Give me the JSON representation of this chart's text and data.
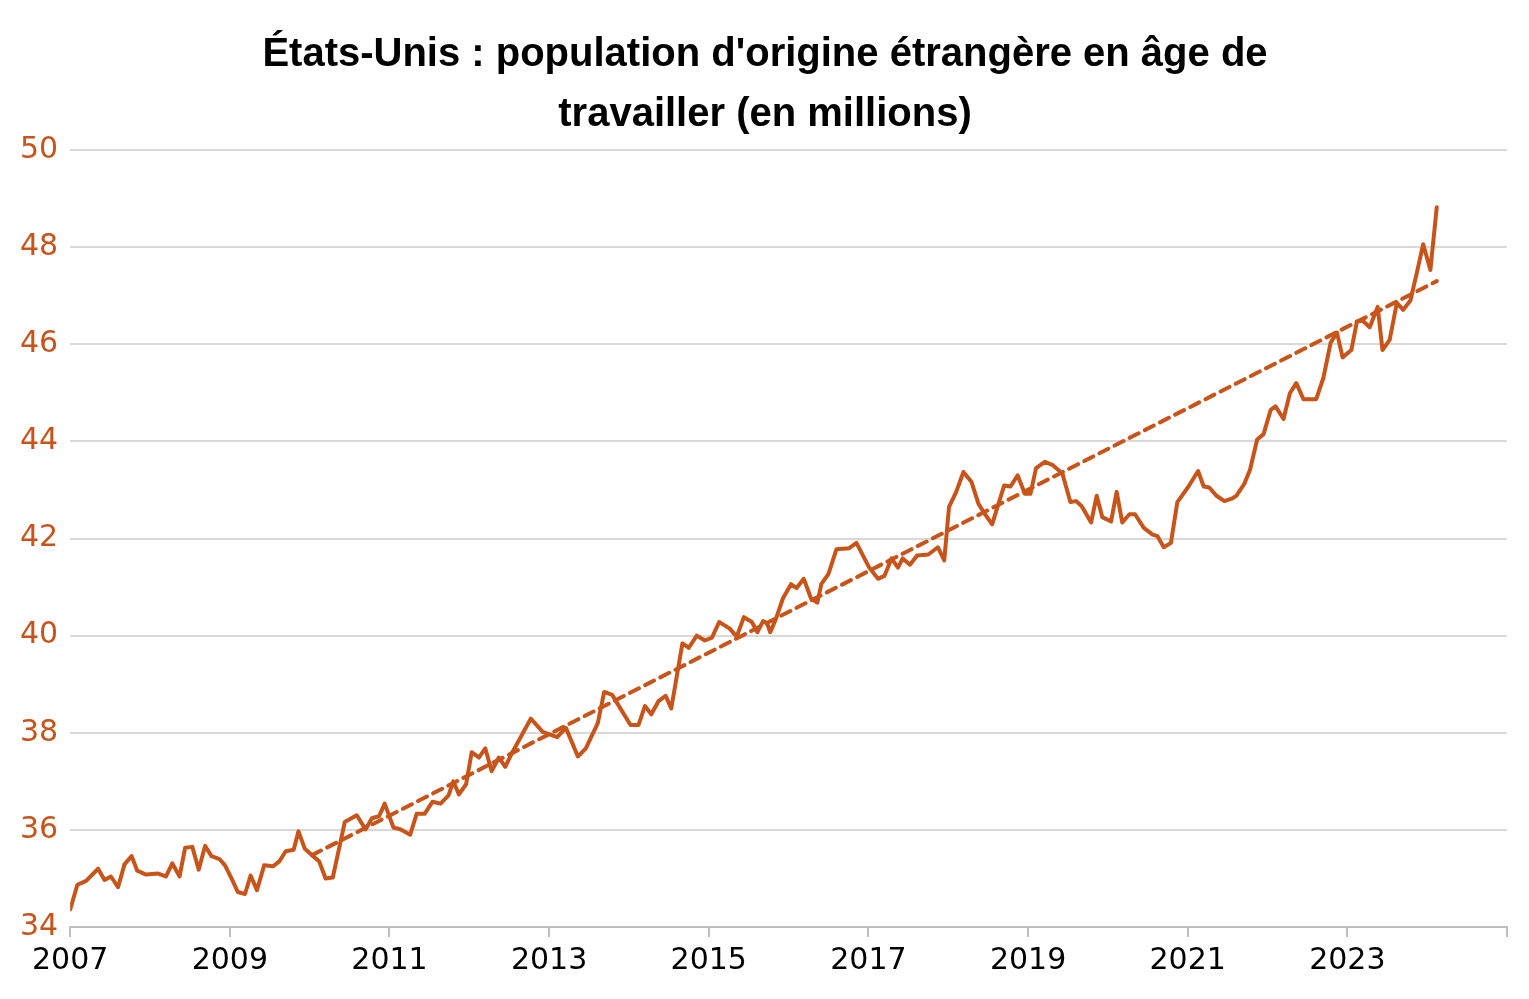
{
  "chart_data": {
    "type": "line",
    "title": "États-Unis : population d'origine étrangère en âge de travailler (en millions)",
    "xlim": [
      2007,
      2025
    ],
    "xticks": [
      2007,
      2009,
      2011,
      2013,
      2015,
      2017,
      2019,
      2021,
      2023,
      {
        "value": 2025,
        "label": null
      }
    ],
    "ylim": [
      34,
      50
    ],
    "yticks": [
      34,
      36,
      38,
      40,
      42,
      44,
      46,
      48,
      50
    ],
    "grid": "y",
    "legend": false,
    "marker": "none",
    "series": [
      {
        "color": "#c9541a",
        "line_style": "solid",
        "x": [
          2007.0,
          2007.09,
          2007.2,
          2007.35,
          2007.43,
          2007.51,
          2007.6,
          2007.68,
          2007.77,
          2007.84,
          2007.95,
          2008.1,
          2008.2,
          2008.28,
          2008.37,
          2008.44,
          2008.53,
          2008.61,
          2008.69,
          2008.77,
          2008.87,
          2008.94,
          2009.03,
          2009.1,
          2009.19,
          2009.26,
          2009.34,
          2009.43,
          2009.54,
          2009.62,
          2009.7,
          2009.8,
          2009.86,
          2009.94,
          2010.03,
          2010.12,
          2010.2,
          2010.29,
          2010.44,
          2010.59,
          2010.7,
          2010.78,
          2010.87,
          2010.94,
          2011.05,
          2011.14,
          2011.26,
          2011.34,
          2011.44,
          2011.54,
          2011.64,
          2011.74,
          2011.8,
          2011.87,
          2011.96,
          2012.03,
          2012.12,
          2012.2,
          2012.28,
          2012.37,
          2012.45,
          2012.54,
          2012.77,
          2012.92,
          2013.1,
          2013.21,
          2013.36,
          2013.46,
          2013.61,
          2013.69,
          2013.79,
          2013.86,
          2014.02,
          2014.12,
          2014.2,
          2014.28,
          2014.37,
          2014.46,
          2014.53,
          2014.67,
          2014.75,
          2014.85,
          2014.95,
          2015.04,
          2015.13,
          2015.26,
          2015.35,
          2015.44,
          2015.54,
          2015.61,
          2015.68,
          2015.73,
          2015.77,
          2015.84,
          2015.93,
          2016.03,
          2016.1,
          2016.19,
          2016.28,
          2016.36,
          2016.41,
          2016.5,
          2016.6,
          2016.76,
          2016.85,
          2017.01,
          2017.12,
          2017.2,
          2017.29,
          2017.37,
          2017.43,
          2017.52,
          2017.61,
          2017.75,
          2017.87,
          2017.95,
          2018.01,
          2018.1,
          2018.19,
          2018.29,
          2018.38,
          2018.46,
          2018.55,
          2018.7,
          2018.78,
          2018.87,
          2018.96,
          2019.03,
          2019.1,
          2019.21,
          2019.31,
          2019.43,
          2019.53,
          2019.6,
          2019.67,
          2019.79,
          2019.86,
          2019.93,
          2020.04,
          2020.11,
          2020.18,
          2020.27,
          2020.34,
          2020.45,
          2020.56,
          2020.62,
          2020.7,
          2020.79,
          2020.87,
          2021.01,
          2021.13,
          2021.2,
          2021.27,
          2021.36,
          2021.46,
          2021.55,
          2021.61,
          2021.71,
          2021.78,
          2021.87,
          2021.95,
          2022.04,
          2022.1,
          2022.2,
          2022.28,
          2022.36,
          2022.45,
          2022.61,
          2022.7,
          2022.79,
          2022.87,
          2022.94,
          2023.05,
          2023.12,
          2023.19,
          2023.28,
          2023.38,
          2023.44,
          2023.53,
          2023.62,
          2023.7,
          2023.79,
          2023.87,
          2023.95,
          2024.04,
          2024.12
        ],
        "values": [
          34.36,
          34.87,
          34.95,
          35.2,
          34.97,
          35.04,
          34.82,
          35.29,
          35.46,
          35.16,
          35.08,
          35.1,
          35.04,
          35.31,
          35.04,
          35.63,
          35.65,
          35.18,
          35.67,
          35.46,
          35.4,
          35.27,
          34.97,
          34.72,
          34.68,
          35.06,
          34.76,
          35.27,
          35.25,
          35.35,
          35.56,
          35.59,
          35.97,
          35.61,
          35.48,
          35.35,
          35.0,
          35.02,
          36.16,
          36.3,
          36.01,
          36.24,
          36.28,
          36.54,
          36.05,
          36.01,
          35.9,
          36.33,
          36.33,
          36.58,
          36.54,
          36.71,
          37.0,
          36.73,
          36.94,
          37.6,
          37.49,
          37.68,
          37.21,
          37.49,
          37.3,
          37.6,
          38.29,
          38.02,
          37.91,
          38.1,
          37.51,
          37.68,
          38.2,
          38.84,
          38.78,
          38.59,
          38.16,
          38.16,
          38.55,
          38.38,
          38.65,
          38.76,
          38.5,
          39.84,
          39.75,
          40.0,
          39.9,
          39.96,
          40.28,
          40.15,
          39.98,
          40.38,
          40.28,
          40.07,
          40.3,
          40.26,
          40.07,
          40.34,
          40.77,
          41.06,
          40.98,
          41.17,
          40.77,
          40.68,
          41.06,
          41.27,
          41.78,
          41.8,
          41.91,
          41.4,
          41.17,
          41.23,
          41.59,
          41.4,
          41.59,
          41.46,
          41.65,
          41.67,
          41.82,
          41.55,
          42.65,
          42.96,
          43.37,
          43.17,
          42.71,
          42.5,
          42.29,
          43.09,
          43.07,
          43.3,
          42.92,
          42.92,
          43.45,
          43.58,
          43.51,
          43.34,
          42.75,
          42.77,
          42.67,
          42.33,
          42.88,
          42.44,
          42.35,
          42.96,
          42.33,
          42.5,
          42.5,
          42.22,
          42.08,
          42.05,
          41.82,
          41.91,
          42.75,
          43.07,
          43.39,
          43.07,
          43.05,
          42.88,
          42.77,
          42.82,
          42.88,
          43.13,
          43.41,
          44.04,
          44.15,
          44.65,
          44.72,
          44.46,
          44.99,
          45.2,
          44.87,
          44.87,
          45.31,
          46.03,
          46.24,
          45.73,
          45.88,
          46.47,
          46.49,
          46.35,
          46.77,
          45.88,
          46.09,
          46.85,
          46.71,
          46.9,
          47.47,
          48.06,
          47.53,
          48.82
        ]
      },
      {
        "color": "#c9541a",
        "line_style": "dashed",
        "x": [
          2010.03,
          2024.12
        ],
        "values": [
          35.48,
          47.3
        ]
      }
    ]
  }
}
